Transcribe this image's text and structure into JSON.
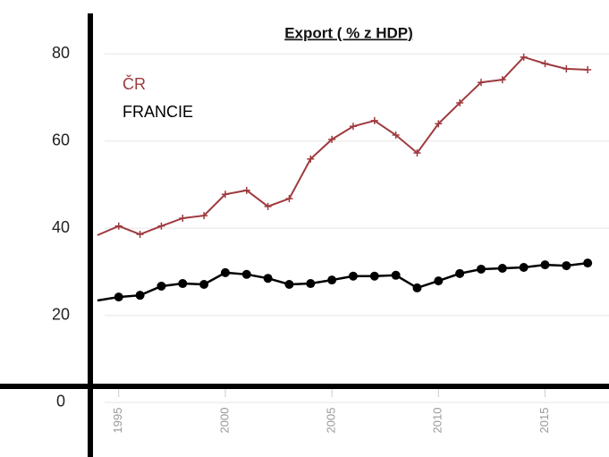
{
  "chart_data": {
    "type": "line",
    "title": "Export ( % z HDP)",
    "x": [
      1994,
      1995,
      1996,
      1997,
      1998,
      1999,
      2000,
      2001,
      2002,
      2003,
      2004,
      2005,
      2006,
      2007,
      2008,
      2009,
      2010,
      2011,
      2012,
      2013,
      2014,
      2015,
      2016,
      2017
    ],
    "series": [
      {
        "name": "ČR",
        "color": "#9e3a3f",
        "values": [
          38.4,
          40.5,
          38.6,
          40.5,
          42.3,
          42.9,
          47.8,
          48.7,
          45,
          46.8,
          55.9,
          60.4,
          63.4,
          64.7,
          61.4,
          57.3,
          64,
          68.8,
          73.5,
          74.1,
          79.3,
          77.8,
          76.6,
          76.4
        ]
      },
      {
        "name": "FRANCIE",
        "color": "#000000",
        "values": [
          23.4,
          24.2,
          24.6,
          26.7,
          27.3,
          27.1,
          29.8,
          29.4,
          28.5,
          27.1,
          27.3,
          28.1,
          29,
          29,
          29.2,
          26.3,
          27.9,
          29.6,
          30.6,
          30.8,
          31,
          31.6,
          31.4,
          32
        ]
      }
    ],
    "xlim": [
      1993.5,
      2018
    ],
    "xticks": [
      1995,
      2000,
      2005,
      2010,
      2015
    ],
    "ylim": [
      -12,
      89
    ],
    "yticks": [
      0,
      20,
      40,
      60,
      80
    ],
    "grid": true
  }
}
